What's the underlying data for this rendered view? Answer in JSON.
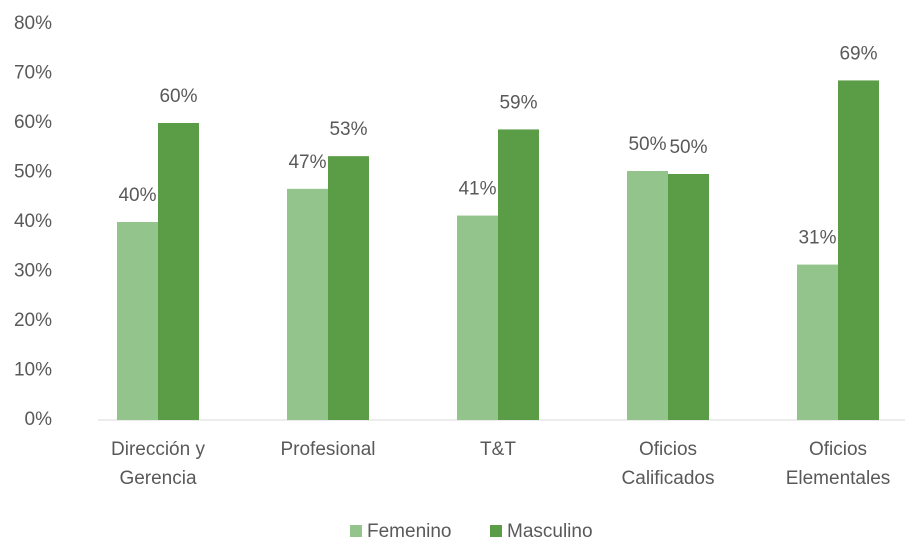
{
  "chart_data": {
    "type": "bar",
    "categories": [
      [
        "Dirección y",
        "Gerencia"
      ],
      [
        "Profesional"
      ],
      [
        "T&T"
      ],
      [
        "Oficios",
        "Calificados"
      ],
      [
        "Oficios",
        "Elementales"
      ]
    ],
    "series": [
      {
        "name": "Femenino",
        "color": "#93c48b",
        "values": [
          40,
          46.7,
          41.3,
          50.3,
          31.4
        ],
        "value_labels": [
          "40%",
          "47%",
          "41%",
          "50%",
          "31%"
        ]
      },
      {
        "name": "Masculino",
        "color": "#5b9c47",
        "values": [
          60,
          53.3,
          58.7,
          49.7,
          68.6
        ],
        "value_labels": [
          "60%",
          "53%",
          "59%",
          "50%",
          "69%"
        ]
      }
    ],
    "ylim": [
      0,
      80
    ],
    "yticks": [
      {
        "value": 0,
        "label": "0%"
      },
      {
        "value": 10,
        "label": "10%"
      },
      {
        "value": 20,
        "label": "20%"
      },
      {
        "value": 30,
        "label": "30%"
      },
      {
        "value": 40,
        "label": "40%"
      },
      {
        "value": 50,
        "label": "50%"
      },
      {
        "value": 60,
        "label": "60%"
      },
      {
        "value": 70,
        "label": "70%"
      },
      {
        "value": 80,
        "label": "80%"
      }
    ],
    "grid": false,
    "legend": "bottom"
  }
}
